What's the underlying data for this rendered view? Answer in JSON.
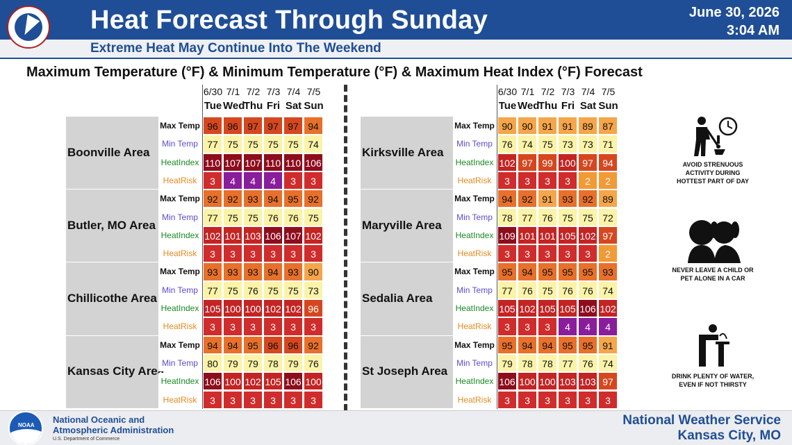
{
  "header": {
    "title": "Heat Forecast Through Sunday",
    "subtitle": "Extreme Heat May Continue Into The Weekend",
    "date": "June 30, 2026",
    "time": "3:04 AM",
    "logo_text": "NATIONAL WEATHER SERVICE"
  },
  "chart_title": "Maximum Temperature (°F) & Minimum Temperature (°F) & Maximum Heat Index (°F) Forecast",
  "days": [
    {
      "date": "6/30",
      "dow": "Tue"
    },
    {
      "date": "7/1",
      "dow": "Wed"
    },
    {
      "date": "7/2",
      "dow": "Thu"
    },
    {
      "date": "7/3",
      "dow": "Fri"
    },
    {
      "date": "7/4",
      "dow": "Sat"
    },
    {
      "date": "7/5",
      "dow": "Sun"
    }
  ],
  "row_labels": [
    "Max Temp",
    "Min Temp",
    "HeatIndex",
    "HeatRisk"
  ],
  "chart_data": {
    "type": "table",
    "columns": [
      "6/30 Tue",
      "7/1 Wed",
      "7/2 Thu",
      "7/3 Fri",
      "7/4 Sat",
      "7/5 Sun"
    ],
    "areas": [
      {
        "name": "Boonville Area",
        "max": [
          96,
          96,
          97,
          97,
          97,
          94
        ],
        "min": [
          77,
          75,
          75,
          75,
          75,
          74
        ],
        "heat_index": [
          110,
          107,
          107,
          110,
          110,
          106
        ],
        "heat_risk": [
          3,
          4,
          4,
          4,
          3,
          3
        ]
      },
      {
        "name": "Butler, MO Area",
        "max": [
          92,
          92,
          93,
          94,
          95,
          92
        ],
        "min": [
          77,
          75,
          75,
          76,
          76,
          75
        ],
        "heat_index": [
          102,
          101,
          103,
          106,
          107,
          102
        ],
        "heat_risk": [
          3,
          3,
          3,
          3,
          3,
          3
        ]
      },
      {
        "name": "Chillicothe Area",
        "max": [
          93,
          93,
          93,
          94,
          93,
          90
        ],
        "min": [
          77,
          75,
          76,
          75,
          75,
          73
        ],
        "heat_index": [
          105,
          100,
          100,
          102,
          102,
          96
        ],
        "heat_risk": [
          3,
          3,
          3,
          3,
          3,
          3
        ]
      },
      {
        "name": "Kansas City Area",
        "max": [
          94,
          94,
          95,
          96,
          96,
          92
        ],
        "min": [
          80,
          79,
          79,
          78,
          79,
          76
        ],
        "heat_index": [
          106,
          100,
          102,
          105,
          106,
          100
        ],
        "heat_risk": [
          3,
          3,
          3,
          3,
          3,
          3
        ]
      },
      {
        "name": "Kirksville Area",
        "max": [
          90,
          90,
          91,
          91,
          89,
          87
        ],
        "min": [
          76,
          74,
          75,
          73,
          73,
          71
        ],
        "heat_index": [
          102,
          97,
          99,
          100,
          97,
          94
        ],
        "heat_risk": [
          3,
          3,
          3,
          3,
          2,
          2
        ]
      },
      {
        "name": "Maryville Area",
        "max": [
          94,
          92,
          91,
          93,
          92,
          89
        ],
        "min": [
          78,
          77,
          76,
          75,
          75,
          72
        ],
        "heat_index": [
          109,
          101,
          101,
          105,
          102,
          97
        ],
        "heat_risk": [
          3,
          3,
          3,
          3,
          3,
          2
        ]
      },
      {
        "name": "Sedalia Area",
        "max": [
          95,
          94,
          95,
          95,
          95,
          93
        ],
        "min": [
          77,
          76,
          75,
          76,
          76,
          74
        ],
        "heat_index": [
          105,
          102,
          105,
          105,
          106,
          102
        ],
        "heat_risk": [
          3,
          3,
          3,
          4,
          4,
          4
        ]
      },
      {
        "name": "St Joseph Area",
        "max": [
          95,
          94,
          94,
          95,
          95,
          91
        ],
        "min": [
          79,
          78,
          78,
          77,
          76,
          74
        ],
        "heat_index": [
          106,
          100,
          100,
          103,
          103,
          97
        ],
        "heat_risk": [
          3,
          3,
          3,
          3,
          3,
          3
        ]
      }
    ]
  },
  "colors": {
    "header_bg": "#1f4e96",
    "temp_hot": "#e8702a",
    "temp_very_hot": "#d6471f",
    "temp_warm": "#f5a64a",
    "min_yellow": "#fbf3a8",
    "hi_red": "#c42424",
    "hi_dark": "#8e0d1d",
    "risk_red": "#d02c2c",
    "risk_purple": "#8a1d9c",
    "risk_orange": "#f29a36"
  },
  "tips": [
    {
      "icon": "shovel-worker-clock-icon",
      "text": "AVOID STRENUOUS ACTIVITY DURING HOTTEST PART OF DAY"
    },
    {
      "icon": "child-and-pet-icon",
      "text": "NEVER LEAVE A CHILD OR PET ALONE IN A CAR"
    },
    {
      "icon": "drinking-fountain-icon",
      "text": "DRINK PLENTY OF WATER, EVEN IF NOT THIRSTY"
    }
  ],
  "footer": {
    "noaa_logo": "NOAA",
    "noaa_line1": "National Oceanic and",
    "noaa_line2": "Atmospheric Administration",
    "noaa_sub": "U.S. Department of Commerce",
    "nws_line1": "National Weather Service",
    "nws_line2": "Kansas City, MO"
  }
}
